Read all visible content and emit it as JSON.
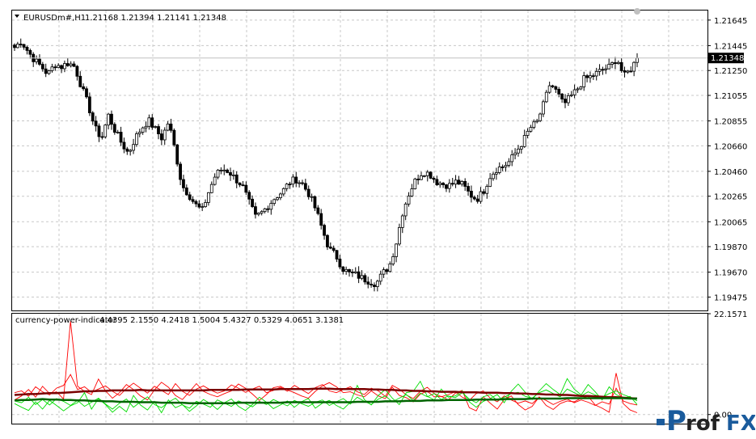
{
  "main_panel": {
    "header_symbol": "EURUSDm#,H1",
    "header_ohlc": "1.21168 1.21394 1.21141 1.21348",
    "current_price_label": "1.21348",
    "current_price": 1.21348
  },
  "indicator_panel": {
    "header_name": "currency-power-indicator",
    "header_values": "4.4395 2.1550 4.2418 1.5004 5.4327 0.5329 4.0651 3.1381"
  },
  "logo": {
    "text_p": "P",
    "text_rof": "rof",
    "text_fx": "FX",
    "colors": {
      "p": "#1a5b9c",
      "fx": "#1a5b9c",
      "dot": "#1a5b9c"
    }
  },
  "chart_data": [
    {
      "type": "candlestick",
      "ylim": [
        1.1937,
        1.2172
      ],
      "y_ticks": [
        "1.21645",
        "1.21445",
        "1.21250",
        "1.21055",
        "1.20855",
        "1.20660",
        "1.20460",
        "1.20265",
        "1.20065",
        "1.19870",
        "1.19670",
        "1.19475"
      ],
      "candles_count": 200,
      "close_path": [
        1.2143,
        1.2148,
        1.214,
        1.2133,
        1.2128,
        1.2122,
        1.213,
        1.2128,
        1.2131,
        1.2128,
        1.2112,
        1.2098,
        1.208,
        1.2072,
        1.209,
        1.2078,
        1.2068,
        1.206,
        1.2072,
        1.208,
        1.2086,
        1.2079,
        1.2072,
        1.2085,
        1.2062,
        1.2035,
        1.2028,
        1.202,
        1.2015,
        1.203,
        1.2043,
        1.2048,
        1.2046,
        1.204,
        1.2035,
        1.2022,
        1.201,
        1.2014,
        1.202,
        1.2026,
        1.203,
        1.2037,
        1.204,
        1.2036,
        1.2028,
        1.2016,
        1.2,
        1.1985,
        1.198,
        1.197,
        1.1966,
        1.1965,
        1.1962,
        1.196,
        1.1958,
        1.1966,
        1.1972,
        1.199,
        1.2015,
        1.203,
        1.204,
        1.2046,
        1.2044,
        1.2038,
        1.2036,
        1.2035,
        1.2038,
        1.2035,
        1.2028,
        1.2024,
        1.203,
        1.2042,
        1.2048,
        1.205,
        1.2054,
        1.2062,
        1.207,
        1.208,
        1.2084,
        1.2098,
        1.2115,
        1.2108,
        1.2098,
        1.2104,
        1.211,
        1.2118,
        1.212,
        1.2123,
        1.2126,
        1.2128,
        1.2135,
        1.212,
        1.2126,
        1.2134
      ],
      "colors": {
        "up": "#000000",
        "down": "#000000",
        "up_fill": "#ffffff",
        "down_fill": "#000000",
        "grid": "#c8c8c8",
        "price_tag_bg": "#000000",
        "price_tag_text": "#ffffff"
      }
    },
    {
      "type": "line",
      "ylim": [
        -2.0,
        22.1571
      ],
      "y_ticks": [
        "22.1571",
        "0.00"
      ],
      "series": [
        {
          "role": "red-fast-1",
          "color": "#ff0000",
          "values": [
            3.2,
            4.1,
            5.5,
            3.8,
            6.2,
            4.6,
            5.0,
            3.4,
            20.5,
            6.2,
            5.1,
            4.4,
            7.8,
            5.2,
            3.6,
            4.8,
            6.6,
            5.5,
            4.1,
            3.2,
            5.4,
            7.1,
            6.0,
            4.2,
            3.3,
            5.0,
            6.8,
            5.1,
            4.4,
            3.9,
            4.6,
            5.2,
            6.7,
            5.8,
            4.5,
            3.1,
            4.4,
            5.9,
            6.2,
            5.4,
            4.8,
            4.1,
            3.6,
            5.1,
            6.3,
            7.0,
            6.1,
            4.8,
            5.0,
            4.3,
            3.9,
            5.2,
            4.1,
            3.5,
            6.0,
            4.2,
            3.7,
            2.8,
            4.5,
            5.1,
            3.9,
            4.0,
            3.2,
            4.7,
            5.3,
            1.5,
            0.8,
            3.9,
            2.5,
            1.2,
            3.3,
            4.1,
            2.2,
            1.0,
            1.8,
            3.9,
            2.0,
            1.1,
            2.4,
            3.0,
            2.8,
            3.6,
            4.0,
            2.1,
            1.4,
            0.5,
            9.1,
            2.4,
            1.0,
            0.4
          ]
        },
        {
          "role": "red-fast-2",
          "color": "#ff0000",
          "values": [
            4.8,
            5.2,
            4.0,
            6.1,
            5.0,
            4.3,
            5.8,
            6.4,
            8.8,
            5.5,
            6.1,
            4.9,
            5.6,
            6.3,
            5.1,
            4.2,
            5.7,
            6.9,
            5.8,
            4.7,
            6.2,
            5.3,
            4.4,
            6.8,
            5.1,
            4.2,
            5.6,
            6.3,
            5.4,
            4.7,
            5.2,
            6.5,
            5.8,
            4.9,
            5.6,
            6.2,
            4.8,
            5.3,
            6.0,
            5.1,
            6.4,
            5.5,
            4.6,
            5.9,
            6.6,
            5.2,
            4.8,
            5.5,
            6.1,
            5.0,
            4.4,
            5.8,
            5.2,
            4.0,
            6.4,
            5.6,
            4.3,
            3.5,
            5.1,
            6.0,
            4.6,
            3.9,
            4.4,
            5.0,
            3.8,
            3.1,
            4.6,
            5.2,
            3.6,
            2.8,
            4.1,
            3.2,
            2.5,
            3.0,
            2.4,
            3.8,
            3.1,
            2.2,
            2.9,
            3.4,
            2.6,
            3.2,
            2.7,
            2.0,
            2.8,
            2.3,
            5.8,
            3.0,
            2.4,
            2.1
          ]
        },
        {
          "role": "green-fast-1",
          "color": "#00dd00",
          "values": [
            2.4,
            1.6,
            0.9,
            2.8,
            1.2,
            3.1,
            2.0,
            0.8,
            1.9,
            2.6,
            4.8,
            1.2,
            3.5,
            2.2,
            0.5,
            1.8,
            0.6,
            4.2,
            2.1,
            1.0,
            2.9,
            0.4,
            3.2,
            1.5,
            2.2,
            0.7,
            1.9,
            3.3,
            2.4,
            1.1,
            2.6,
            3.4,
            1.8,
            0.9,
            2.2,
            3.8,
            2.7,
            1.3,
            2.1,
            3.0,
            1.6,
            2.8,
            3.5,
            1.4,
            2.5,
            3.1,
            2.0,
            1.2,
            2.7,
            6.4,
            3.3,
            2.1,
            4.2,
            5.5,
            3.6,
            2.2,
            4.8,
            5.1,
            7.3,
            4.0,
            3.2,
            5.6,
            3.8,
            4.1,
            5.2,
            2.8,
            1.6,
            2.9,
            3.5,
            4.4,
            2.6,
            5.1,
            6.7,
            4.9,
            3.3,
            5.2,
            6.8,
            5.5,
            4.4,
            7.9,
            5.6,
            4.3,
            6.6,
            5.0,
            3.2,
            6.1,
            4.4,
            3.6,
            4.0,
            2.2
          ]
        },
        {
          "role": "green-fast-2",
          "color": "#00dd00",
          "values": [
            3.0,
            2.6,
            3.8,
            2.2,
            3.3,
            2.1,
            3.5,
            2.9,
            2.0,
            3.1,
            1.8,
            2.7,
            3.6,
            2.3,
            1.2,
            2.5,
            3.4,
            1.6,
            2.8,
            3.9,
            2.2,
            1.5,
            2.7,
            3.6,
            2.1,
            1.4,
            2.9,
            2.3,
            1.6,
            3.2,
            2.5,
            1.8,
            3.0,
            2.4,
            1.7,
            2.9,
            2.2,
            3.3,
            2.6,
            1.9,
            3.1,
            2.4,
            1.8,
            2.7,
            3.2,
            2.0,
            2.8,
            3.5,
            2.3,
            3.8,
            2.9,
            2.2,
            3.4,
            4.1,
            2.8,
            3.6,
            4.4,
            3.1,
            4.7,
            3.9,
            4.6,
            3.3,
            4.1,
            3.7,
            4.8,
            3.4,
            2.6,
            3.9,
            4.4,
            3.1,
            3.8,
            4.6,
            4.9,
            4.0,
            3.6,
            4.8,
            5.4,
            4.6,
            3.9,
            5.6,
            4.8,
            4.1,
            5.0,
            4.3,
            3.8,
            4.6,
            5.2,
            4.4,
            3.8,
            3.0
          ]
        },
        {
          "role": "dark-red-ma",
          "color": "#7a0000",
          "values": [
            4.3,
            4.4,
            4.5,
            4.5,
            4.6,
            4.7,
            4.7,
            4.8,
            4.9,
            5.0,
            5.1,
            5.1,
            5.2,
            5.2,
            5.3,
            5.3,
            5.3,
            5.3,
            5.4,
            5.3,
            5.3,
            5.3,
            5.3,
            5.3,
            5.3,
            5.3,
            5.3,
            5.3,
            5.4,
            5.4,
            5.4,
            5.4,
            5.4,
            5.5,
            5.5,
            5.5,
            5.5,
            5.5,
            5.6,
            5.6,
            5.6,
            5.6,
            5.6,
            5.7,
            5.7,
            5.7,
            5.6,
            5.6,
            5.6,
            5.6,
            5.6,
            5.5,
            5.5,
            5.4,
            5.4,
            5.3,
            5.3,
            5.2,
            5.2,
            5.1,
            5.1,
            5.0,
            5.0,
            5.0,
            4.9,
            4.9,
            4.9,
            4.8,
            4.8,
            4.8,
            4.7,
            4.7,
            4.6,
            4.6,
            4.5,
            4.5,
            4.4,
            4.4,
            4.3,
            4.3,
            4.2,
            4.1,
            4.1,
            4.0,
            3.9,
            3.8,
            3.8,
            3.7,
            3.6,
            3.5
          ]
        },
        {
          "role": "dark-green-ma",
          "color": "#006400",
          "values": [
            3.1,
            3.2,
            3.2,
            3.3,
            3.4,
            3.3,
            3.3,
            3.2,
            3.2,
            3.1,
            3.1,
            3.0,
            3.0,
            2.9,
            2.9,
            2.8,
            2.8,
            2.8,
            2.7,
            2.7,
            2.7,
            2.6,
            2.6,
            2.6,
            2.6,
            2.5,
            2.5,
            2.5,
            2.5,
            2.5,
            2.5,
            2.5,
            2.6,
            2.6,
            2.6,
            2.6,
            2.6,
            2.6,
            2.6,
            2.7,
            2.7,
            2.7,
            2.7,
            2.7,
            2.7,
            2.7,
            2.7,
            2.7,
            2.7,
            2.8,
            2.8,
            2.8,
            2.8,
            2.9,
            2.9,
            2.9,
            3.0,
            3.0,
            3.0,
            3.1,
            3.1,
            3.1,
            3.2,
            3.2,
            3.2,
            3.2,
            3.3,
            3.3,
            3.3,
            3.3,
            3.4,
            3.4,
            3.4,
            3.4,
            3.5,
            3.5,
            3.5,
            3.5,
            3.5,
            3.6,
            3.6,
            3.6,
            3.6,
            3.6,
            3.6,
            3.6,
            3.6,
            3.6,
            3.5,
            3.5
          ]
        }
      ]
    }
  ]
}
